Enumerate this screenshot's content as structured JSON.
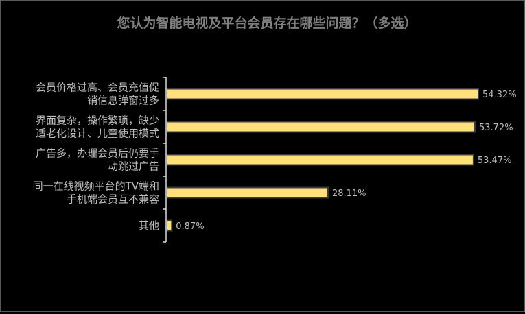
{
  "chart_data": {
    "type": "bar",
    "orientation": "horizontal",
    "title": "您认为智能电视及平台会员存在哪些问题？（多选）",
    "categories": [
      [
        "会员价格过高、会员充值促",
        "销信息弹窗过多"
      ],
      [
        "界面复杂，操作繁琐，缺少",
        "适老化设计、儿童使用模式"
      ],
      [
        "广告多，办理会员后仍要手",
        "动跳过广告"
      ],
      [
        "同一在线视频平台的TV端和",
        "手机端会员互不兼容"
      ],
      [
        "其他"
      ]
    ],
    "values": [
      54.32,
      53.72,
      53.47,
      28.11,
      0.87
    ],
    "value_labels": [
      "54.32%",
      "53.72%",
      "53.47%",
      "28.11%",
      "0.87%"
    ],
    "unit": "%",
    "xlim": [
      0,
      54.32
    ],
    "grid": false,
    "legend": "none",
    "colors": {
      "bar": "#ffe07a",
      "background": "#000000",
      "text": "#bfbfbf",
      "title": "#7f7f7f"
    }
  }
}
